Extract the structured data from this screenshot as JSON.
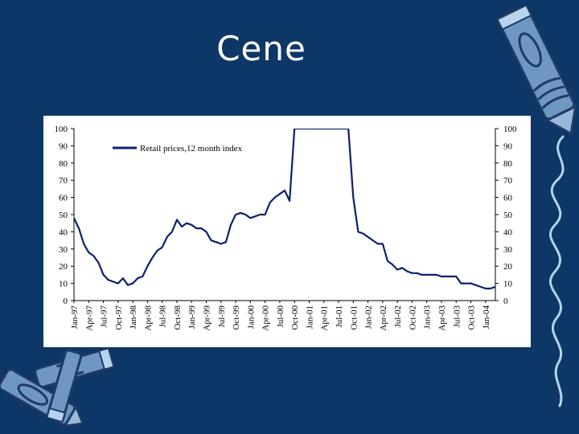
{
  "slide": {
    "title": "Cene"
  },
  "colors": {
    "background": "#0d3766",
    "series": "#0d1f6e",
    "crayon_fill": "#6f97c4",
    "crayon_dark": "#1e3a66",
    "scribble": "#b7d3ee"
  },
  "decorations": {
    "top_right": "crayon-icon",
    "bottom_left": "crayons-icon",
    "right_edge": "scribble-line"
  },
  "chart_data": {
    "type": "line",
    "title": "",
    "xlabel": "",
    "ylabel": "",
    "ylim": [
      0,
      100
    ],
    "yticks": [
      0,
      10,
      20,
      30,
      40,
      50,
      60,
      70,
      80,
      90,
      100
    ],
    "y_axis_right": true,
    "grid": false,
    "legend_position": "top-left",
    "x_tick_labels": [
      "Jan-97",
      "Apr-97",
      "Jul-97",
      "Oct-97",
      "Jan-98",
      "Apr-98",
      "Jul-98",
      "Oct-98",
      "Jan-99",
      "Apr-99",
      "Jul-99",
      "Oct-99",
      "Jan-00",
      "Apr-00",
      "Jul-00",
      "Oct-00",
      "Jan-01",
      "Apr-01",
      "Jul-01",
      "Oct-01",
      "Jan-02",
      "Apr-02",
      "Jul-02",
      "Oct-02",
      "Jan-03",
      "Apr-03",
      "Jul-03",
      "Oct-03",
      "Jan-04"
    ],
    "series": [
      {
        "name": "Retail prices,12 month index",
        "x": [
          "Jan-97",
          "Feb-97",
          "Mar-97",
          "Apr-97",
          "May-97",
          "Jun-97",
          "Jul-97",
          "Aug-97",
          "Sep-97",
          "Oct-97",
          "Nov-97",
          "Dec-97",
          "Jan-98",
          "Feb-98",
          "Mar-98",
          "Apr-98",
          "May-98",
          "Jun-98",
          "Jul-98",
          "Aug-98",
          "Sep-98",
          "Oct-98",
          "Nov-98",
          "Dec-98",
          "Jan-99",
          "Feb-99",
          "Mar-99",
          "Apr-99",
          "May-99",
          "Jun-99",
          "Jul-99",
          "Aug-99",
          "Sep-99",
          "Oct-99",
          "Nov-99",
          "Dec-99",
          "Jan-00",
          "Feb-00",
          "Mar-00",
          "Apr-00",
          "May-00",
          "Jun-00",
          "Jul-00",
          "Aug-00",
          "Sep-00",
          "Oct-00",
          "Nov-00",
          "Dec-00",
          "Jan-01",
          "Feb-01",
          "Mar-01",
          "Apr-01",
          "May-01",
          "Jun-01",
          "Jul-01",
          "Aug-01",
          "Sep-01",
          "Oct-01",
          "Nov-01",
          "Dec-01",
          "Jan-02",
          "Feb-02",
          "Mar-02",
          "Apr-02",
          "May-02",
          "Jun-02",
          "Jul-02",
          "Aug-02",
          "Sep-02",
          "Oct-02",
          "Nov-02",
          "Dec-02",
          "Jan-03",
          "Feb-03",
          "Mar-03",
          "Apr-03",
          "May-03",
          "Jun-03",
          "Jul-03",
          "Aug-03",
          "Sep-03",
          "Oct-03",
          "Nov-03",
          "Dec-03",
          "Jan-04",
          "Feb-04",
          "Mar-04"
        ],
        "values": [
          48,
          42,
          33,
          28,
          26,
          22,
          15,
          12,
          11,
          10,
          13,
          9,
          10,
          13,
          14,
          20,
          25,
          29,
          31,
          37,
          40,
          47,
          43,
          45,
          44,
          42,
          42,
          40,
          35,
          34,
          33,
          34,
          44,
          50,
          51,
          50,
          48,
          49,
          50,
          50,
          57,
          60,
          62,
          64,
          58,
          100,
          100,
          100,
          100,
          100,
          100,
          100,
          100,
          100,
          100,
          100,
          100,
          60,
          40,
          39,
          37,
          35,
          33,
          33,
          23,
          21,
          18,
          19,
          17,
          16,
          16,
          15,
          15,
          15,
          15,
          14,
          14,
          14,
          14,
          10,
          10,
          10,
          9,
          8,
          7,
          7,
          8
        ]
      }
    ]
  }
}
